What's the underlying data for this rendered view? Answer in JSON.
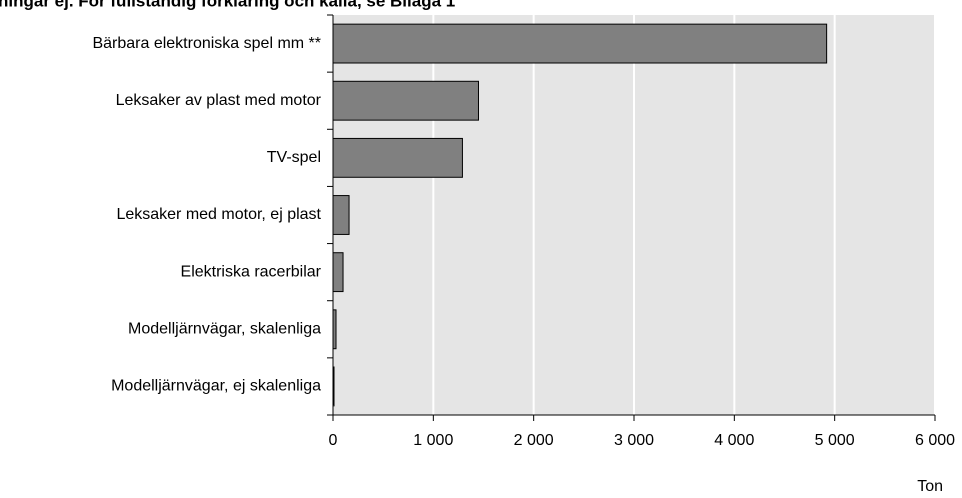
{
  "chart_data": {
    "type": "barh",
    "title": "ningar ej. För fullständig förklaring och källa, se Bilaga 1",
    "categories": [
      "Bärbara elektroniska spel mm **",
      "Leksaker av plast med motor",
      "TV-spel",
      "Leksaker med motor, ej plast",
      "Elektriska racerbilar",
      "Modelljärnvägar, skalenliga",
      "Modelljärnvägar, ej skalenliga"
    ],
    "values": [
      4920,
      1450,
      1290,
      160,
      100,
      30,
      10
    ],
    "color": "#808080",
    "xlabel": "Ton",
    "xlim": [
      0,
      6000
    ],
    "xticks": [
      0,
      {
        "value": 1000,
        "label": "1 000"
      },
      {
        "value": 2000,
        "label": "2 000"
      },
      {
        "value": 3000,
        "label": "3 000"
      },
      {
        "value": 4000,
        "label": "4 000"
      },
      {
        "value": 5000,
        "label": "5 000"
      },
      {
        "value": 6000,
        "label": "6 000"
      }
    ],
    "grid": true
  }
}
